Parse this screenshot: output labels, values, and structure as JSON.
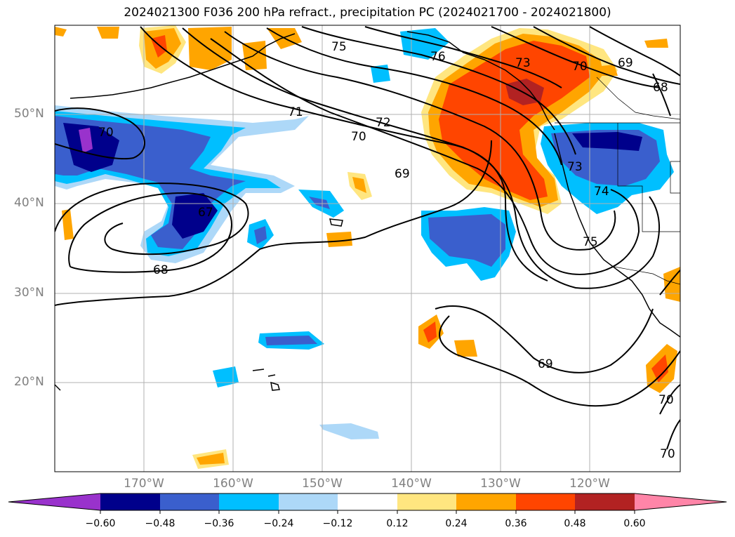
{
  "title": "2024021300 F036 200 hPa refract., precipitation PC (2024021700 - 2024021800)",
  "map": {
    "lat_labels": [
      "50°N",
      "40°N",
      "30°N",
      "20°N"
    ],
    "lon_labels": [
      "170°W",
      "160°W",
      "150°W",
      "140°W",
      "130°W",
      "120°W"
    ],
    "contour_labels": [
      "75",
      "76",
      "73",
      "70",
      "69",
      "71",
      "72",
      "70",
      "69",
      "67",
      "68",
      "73",
      "74",
      "75",
      "70",
      "69",
      "70",
      "70",
      "68"
    ]
  },
  "colorbar": {
    "ticks": [
      "−0.60",
      "−0.48",
      "−0.36",
      "−0.24",
      "−0.12",
      "0.12",
      "0.24",
      "0.36",
      "0.48",
      "0.60"
    ],
    "colors": [
      "#9932cc",
      "#00008b",
      "#3a5fcd",
      "#00bfff",
      "#add8f8",
      "#ffffff",
      "#ffe680",
      "#ffa500",
      "#ff4500",
      "#b22222",
      "#ff85a8"
    ]
  }
}
